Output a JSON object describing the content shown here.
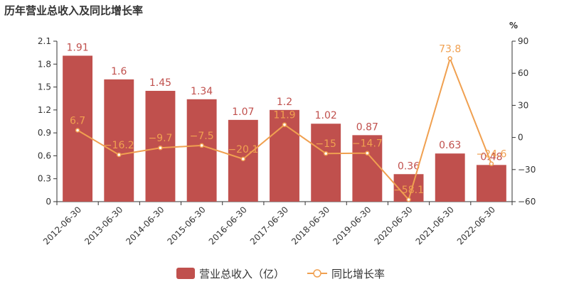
{
  "chart_data": {
    "type": "bar",
    "title": "历年营业总收入及同比增长率",
    "categories": [
      "2012-06-30",
      "2013-06-30",
      "2014-06-30",
      "2015-06-30",
      "2016-06-30",
      "2017-06-30",
      "2018-06-30",
      "2019-06-30",
      "2020-06-30",
      "2021-06-30",
      "2022-06-30"
    ],
    "series": [
      {
        "name": "营业总收入（亿）",
        "type": "bar",
        "axis": "left",
        "color": "#c0504d",
        "values": [
          1.91,
          1.6,
          1.45,
          1.34,
          1.07,
          1.2,
          1.02,
          0.87,
          0.36,
          0.63,
          0.48
        ]
      },
      {
        "name": "同比增长率",
        "type": "line",
        "axis": "right",
        "color": "#f0a050",
        "values": [
          6.7,
          -16.2,
          -9.7,
          -7.5,
          -20.1,
          11.9,
          -15,
          -14.7,
          -58.1,
          73.8,
          -24.6
        ]
      }
    ],
    "y_left": {
      "ylim": [
        0,
        2.1
      ],
      "ticks": [
        "0",
        "0.3",
        "0.6",
        "0.9",
        "1.2",
        "1.5",
        "1.8",
        "2.1"
      ]
    },
    "y_right": {
      "label": "%",
      "ylim": [
        -60,
        90
      ],
      "ticks": [
        "−60",
        "−30",
        "0",
        "30",
        "60",
        "90"
      ]
    },
    "bar_labels": [
      "1.91",
      "1.6",
      "1.45",
      "1.34",
      "1.07",
      "1.2",
      "1.02",
      "0.87",
      "0.36",
      "0.63",
      "0.48"
    ],
    "line_labels": [
      "6.7",
      "−16.2",
      "−9.7",
      "−7.5",
      "−20.1",
      "11.9",
      "−15",
      "−14.7",
      "−58.1",
      "73.8",
      "−24.6"
    ],
    "grid": false,
    "legend_position": "bottom-center"
  }
}
